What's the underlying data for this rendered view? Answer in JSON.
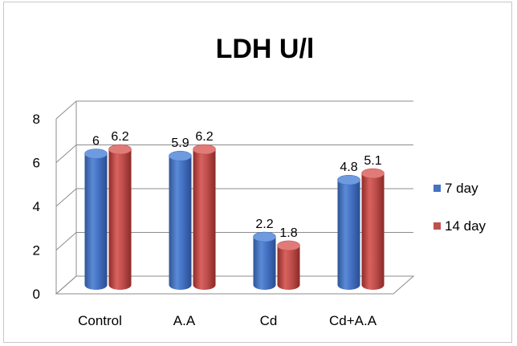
{
  "chart_data": {
    "type": "bar",
    "title": "LDH U/l",
    "categories": [
      "Control",
      "A.A",
      "Cd",
      "Cd+A.A"
    ],
    "series": [
      {
        "name": "7 day",
        "values": [
          6,
          5.9,
          2.2,
          4.8
        ],
        "labels": [
          "6",
          "5.9",
          "2.2",
          "4.8"
        ],
        "color": "#4472c4"
      },
      {
        "name": "14 day",
        "values": [
          6.2,
          6.2,
          1.8,
          5.1
        ],
        "labels": [
          "6.2",
          "6.2",
          "1.8",
          "5.1"
        ],
        "color": "#c0504d"
      }
    ],
    "ylim": [
      0,
      8
    ],
    "yticks": [
      "0",
      "2",
      "4",
      "6",
      "8"
    ],
    "grid": true,
    "legend": "right"
  }
}
